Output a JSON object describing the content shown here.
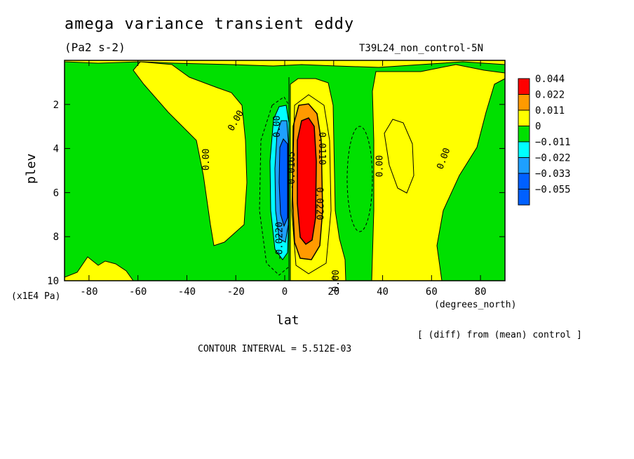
{
  "title": "amega variance transient eddy",
  "units": "(Pa2 s-2)",
  "run_id": "T39L24_non_control-5N",
  "diff_note": "[ (diff) from (mean) control ]",
  "contour_interval": "CONTOUR INTERVAL = 5.512E-03",
  "chart_data": {
    "type": "heatmap",
    "xlabel": "lat",
    "xunit": "(degrees_north)",
    "ylabel": "plev",
    "yunit": "(x1E4 Pa)",
    "xlim": [
      -90,
      90
    ],
    "ylim": [
      10,
      0
    ],
    "x_ticks": [
      -80,
      -60,
      -40,
      -20,
      0,
      20,
      40,
      60,
      80
    ],
    "y_ticks": [
      2,
      4,
      6,
      8,
      10
    ],
    "colorbar": [
      {
        "label": "0.044",
        "color": "#ff0000"
      },
      {
        "label": "0.022",
        "color": "#ff9a00"
      },
      {
        "label": "0.011",
        "color": "#ffff00"
      },
      {
        "label": "0",
        "color": "#00e000"
      },
      {
        "label": "−0.011",
        "color": "#00ffff"
      },
      {
        "label": "−0.022",
        "color": "#1ea0ff"
      },
      {
        "label": "−0.033",
        "color": "#0060ff"
      },
      {
        "label": "−0.055",
        "color": ""
      }
    ],
    "contour_labels": [
      "0.00",
      "0.00",
      "0.00",
      "0.00",
      "0.00",
      "0.00",
      "0.0110",
      "0.0220",
      "-0.0220",
      "-0.0165"
    ]
  }
}
